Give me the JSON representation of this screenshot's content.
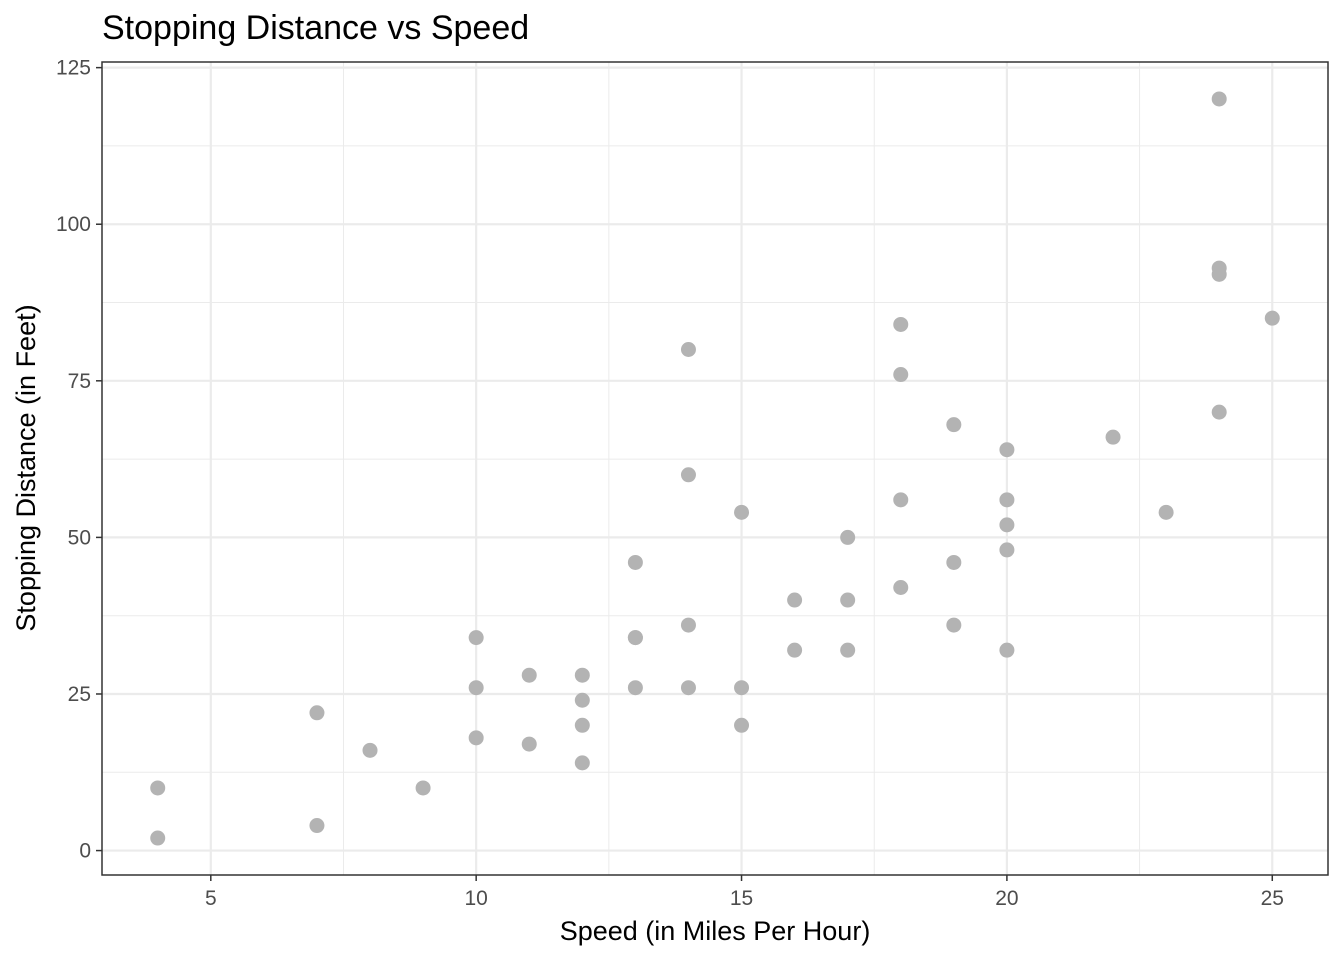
{
  "chart_data": {
    "type": "scatter",
    "title": "Stopping Distance vs Speed",
    "xlabel": "Speed (in Miles Per Hour)",
    "ylabel": "Stopping Distance (in Feet)",
    "xlim": [
      2.95,
      26.05
    ],
    "ylim": [
      -3.9,
      125.9
    ],
    "xticks": [
      5,
      10,
      15,
      20,
      25
    ],
    "yticks": [
      0,
      25,
      50,
      75,
      100,
      125
    ],
    "grid": true,
    "legend": "none",
    "point_color": "#b3b3b3",
    "grid_color": "#ebebeb",
    "points": [
      {
        "x": 4,
        "y": 2
      },
      {
        "x": 4,
        "y": 10
      },
      {
        "x": 7,
        "y": 4
      },
      {
        "x": 7,
        "y": 22
      },
      {
        "x": 8,
        "y": 16
      },
      {
        "x": 9,
        "y": 10
      },
      {
        "x": 10,
        "y": 18
      },
      {
        "x": 10,
        "y": 26
      },
      {
        "x": 10,
        "y": 34
      },
      {
        "x": 11,
        "y": 17
      },
      {
        "x": 11,
        "y": 28
      },
      {
        "x": 12,
        "y": 14
      },
      {
        "x": 12,
        "y": 20
      },
      {
        "x": 12,
        "y": 24
      },
      {
        "x": 12,
        "y": 28
      },
      {
        "x": 13,
        "y": 26
      },
      {
        "x": 13,
        "y": 34
      },
      {
        "x": 13,
        "y": 34
      },
      {
        "x": 13,
        "y": 46
      },
      {
        "x": 14,
        "y": 26
      },
      {
        "x": 14,
        "y": 36
      },
      {
        "x": 14,
        "y": 60
      },
      {
        "x": 14,
        "y": 80
      },
      {
        "x": 15,
        "y": 20
      },
      {
        "x": 15,
        "y": 26
      },
      {
        "x": 15,
        "y": 54
      },
      {
        "x": 16,
        "y": 32
      },
      {
        "x": 16,
        "y": 40
      },
      {
        "x": 17,
        "y": 32
      },
      {
        "x": 17,
        "y": 40
      },
      {
        "x": 17,
        "y": 50
      },
      {
        "x": 18,
        "y": 42
      },
      {
        "x": 18,
        "y": 56
      },
      {
        "x": 18,
        "y": 76
      },
      {
        "x": 18,
        "y": 84
      },
      {
        "x": 19,
        "y": 36
      },
      {
        "x": 19,
        "y": 46
      },
      {
        "x": 19,
        "y": 68
      },
      {
        "x": 20,
        "y": 32
      },
      {
        "x": 20,
        "y": 48
      },
      {
        "x": 20,
        "y": 52
      },
      {
        "x": 20,
        "y": 56
      },
      {
        "x": 20,
        "y": 64
      },
      {
        "x": 22,
        "y": 66
      },
      {
        "x": 23,
        "y": 54
      },
      {
        "x": 24,
        "y": 70
      },
      {
        "x": 24,
        "y": 92
      },
      {
        "x": 24,
        "y": 93
      },
      {
        "x": 24,
        "y": 120
      },
      {
        "x": 25,
        "y": 85
      }
    ]
  }
}
